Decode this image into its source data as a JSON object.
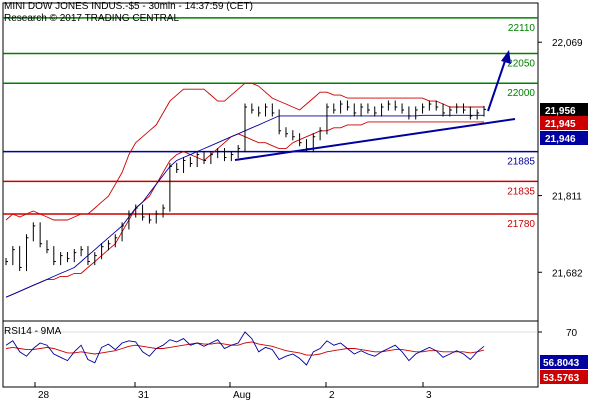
{
  "header": {
    "title": "MINI DOW JONES INDUS.-$5 - 30min - 14:37:59 (CET)",
    "copyright": "Research © 2017 TRADING CENTRAL"
  },
  "colors": {
    "resistance": "#008000",
    "support": "#cc0000",
    "pivot": "#0000a0",
    "price": "#000000",
    "bollinger": "#cc0000",
    "moving_average": "#0000a0",
    "rsi": "#0000a0",
    "rsi_ma": "#cc0000",
    "badge_last": "#000000",
    "badge_red": "#cc0000",
    "badge_blue": "#0000a0"
  },
  "chart_data": [
    {
      "type": "line",
      "name": "price",
      "y_ticks": [
        "22,069",
        "21,811",
        "21,682"
      ],
      "x_ticks": [
        "28",
        "31",
        "Aug",
        "2",
        "3"
      ],
      "ylim": [
        21600,
        22135
      ],
      "levels": [
        {
          "value": 22110,
          "label": "22110",
          "kind": "resistance"
        },
        {
          "value": 22050,
          "label": "22050",
          "kind": "resistance"
        },
        {
          "value": 22000,
          "label": "22000",
          "kind": "resistance"
        },
        {
          "value": 21885,
          "label": "21885",
          "kind": "pivot"
        },
        {
          "value": 21835,
          "label": "21835",
          "kind": "support"
        },
        {
          "value": 21780,
          "label": "21780",
          "kind": "support"
        }
      ],
      "badges": [
        {
          "value": 21956,
          "label": "21,956",
          "kind": "last"
        },
        {
          "value": 21945,
          "label": "21,945",
          "kind": "red"
        },
        {
          "value": 21946,
          "label": "21,946",
          "kind": "blue"
        }
      ],
      "close": [
        21700,
        21720,
        21690,
        21740,
        21760,
        21730,
        21720,
        21700,
        21710,
        21705,
        21715,
        21720,
        21700,
        21710,
        21725,
        21730,
        21740,
        21760,
        21780,
        21790,
        21775,
        21770,
        21780,
        21790,
        21860,
        21855,
        21870,
        21865,
        21880,
        21870,
        21880,
        21885,
        21875,
        21880,
        21890,
        21960,
        21955,
        21950,
        21960,
        21950,
        21920,
        21915,
        21910,
        21900,
        21890,
        21910,
        21920,
        21960,
        21955,
        21965,
        21960,
        21950,
        21960,
        21955,
        21950,
        21960,
        21965,
        21960,
        21955,
        21945,
        21955,
        21960,
        21965,
        21960,
        21950,
        21955,
        21960,
        21955,
        21945,
        21950,
        21956
      ],
      "bollinger_upper": [
        21770,
        21780,
        21775,
        21780,
        21785,
        21780,
        21775,
        21770,
        21770,
        21770,
        21775,
        21780,
        21780,
        21790,
        21800,
        21810,
        21830,
        21850,
        21880,
        21900,
        21910,
        21920,
        21930,
        21950,
        21970,
        21980,
        21990,
        21990,
        21990,
        21990,
        21980,
        21970,
        21970,
        21980,
        21990,
        22000,
        22000,
        21995,
        21985,
        21975,
        21970,
        21965,
        21960,
        21955,
        21965,
        21975,
        21985,
        21985,
        21980,
        21980,
        21975,
        21975,
        21975,
        21975,
        21975,
        21975,
        21975,
        21975,
        21975,
        21975,
        21975,
        21975,
        21970,
        21970,
        21965,
        21960,
        21960,
        21960,
        21960,
        21960,
        21960
      ],
      "bollinger_lower": [
        21640,
        21645,
        21650,
        21655,
        21660,
        21665,
        21670,
        21670,
        21675,
        21675,
        21680,
        21680,
        21690,
        21700,
        21710,
        21720,
        21730,
        21750,
        21770,
        21790,
        21800,
        21810,
        21830,
        21850,
        21870,
        21880,
        21885,
        21880,
        21875,
        21870,
        21880,
        21890,
        21900,
        21910,
        21915,
        21910,
        21905,
        21900,
        21900,
        21895,
        21890,
        21890,
        21900,
        21905,
        21910,
        21915,
        21920,
        21920,
        21925,
        21925,
        21930,
        21930,
        21930,
        21935,
        21935,
        21935,
        21935,
        21935,
        21935,
        21935,
        21935,
        21935,
        21935,
        21935,
        21935,
        21935,
        21935,
        21935,
        21935,
        21935,
        21935
      ],
      "moving_average": [
        21640,
        21645,
        21650,
        21655,
        21660,
        21665,
        21670,
        21675,
        21680,
        21685,
        21690,
        21700,
        21710,
        21720,
        21730,
        21740,
        21750,
        21760,
        21775,
        21790,
        21800,
        21815,
        21830,
        21845,
        21860,
        21870,
        21875,
        21880,
        21885,
        21890,
        21895,
        21900,
        21905,
        21910,
        21915,
        21920,
        21925,
        21930,
        21935,
        21940,
        21945,
        21945,
        21945,
        21945,
        21945,
        21945,
        21945,
        21945,
        21945,
        21945,
        21945,
        21945,
        21945,
        21945,
        21945,
        21945,
        21945,
        21945,
        21945,
        21945,
        21945,
        21946,
        21946,
        21946,
        21946,
        21946,
        21946,
        21946,
        21946,
        21946,
        21946
      ]
    },
    {
      "type": "line",
      "name": "RSI14 - 9MA",
      "label": "RSI14 - 9MA",
      "y_ticks": [
        "70"
      ],
      "ylim": [
        20,
        80
      ],
      "badges": [
        {
          "value": 56.8043,
          "label": "56.8043",
          "kind": "blue"
        },
        {
          "value": 53.5763,
          "label": "53.5763",
          "kind": "red"
        }
      ],
      "rsi": [
        58,
        62,
        52,
        48,
        55,
        60,
        58,
        50,
        47,
        44,
        52,
        58,
        45,
        42,
        56,
        59,
        54,
        60,
        62,
        61,
        52,
        48,
        55,
        58,
        63,
        61,
        64,
        58,
        60,
        57,
        60,
        63,
        55,
        58,
        60,
        70,
        64,
        52,
        56,
        54,
        45,
        48,
        50,
        46,
        40,
        52,
        55,
        62,
        58,
        60,
        55,
        50,
        53,
        50,
        48,
        52,
        55,
        58,
        52,
        44,
        50,
        53,
        56,
        53,
        47,
        50,
        53,
        50,
        45,
        52,
        57
      ],
      "rsi_ma": [
        55,
        56,
        55,
        54,
        54,
        55,
        56,
        55,
        53,
        51,
        51,
        52,
        51,
        50,
        51,
        52,
        53,
        55,
        57,
        58,
        57,
        56,
        55,
        55,
        56,
        57,
        58,
        59,
        60,
        59,
        59,
        60,
        59,
        58,
        58,
        60,
        61,
        59,
        58,
        57,
        55,
        53,
        52,
        51,
        49,
        49,
        50,
        52,
        53,
        54,
        55,
        55,
        54,
        53,
        52,
        52,
        53,
        54,
        54,
        53,
        52,
        52,
        53,
        53,
        52,
        52,
        52,
        52,
        51,
        52,
        53.5763
      ]
    }
  ]
}
